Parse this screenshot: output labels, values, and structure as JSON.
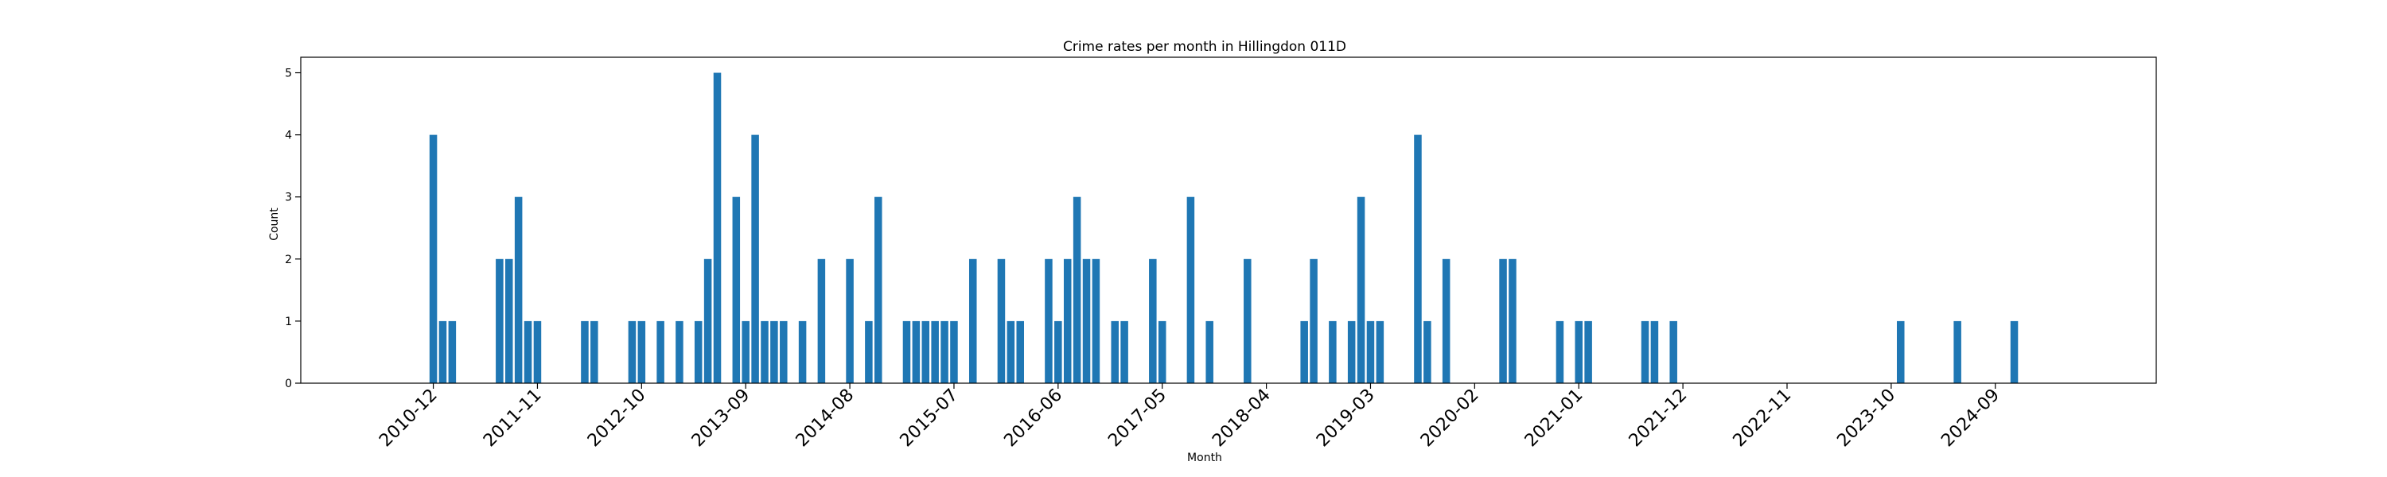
{
  "chart_data": {
    "type": "bar",
    "title": "Crime rates per month in Hillingdon 011D",
    "xlabel": "Month",
    "ylabel": "Count",
    "ylim": [
      0,
      5.25
    ],
    "xlim": [
      "2009-10",
      "2026-02"
    ],
    "yticks": [
      0,
      1,
      2,
      3,
      4,
      5
    ],
    "xticks": [
      "2010-12",
      "2011-11",
      "2012-10",
      "2013-09",
      "2014-08",
      "2015-07",
      "2016-06",
      "2017-05",
      "2018-04",
      "2019-03",
      "2020-02",
      "2021-01",
      "2021-12",
      "2022-11",
      "2023-10",
      "2024-09"
    ],
    "grid": false,
    "legend": "none",
    "bar_color": "#1f77b4",
    "categories": [
      "2010-12",
      "2011-01",
      "2011-02",
      "2011-07",
      "2011-08",
      "2011-09",
      "2011-10",
      "2011-11",
      "2012-04",
      "2012-05",
      "2012-09",
      "2012-10",
      "2012-12",
      "2013-02",
      "2013-04",
      "2013-05",
      "2013-06",
      "2013-08",
      "2013-09",
      "2013-10",
      "2013-11",
      "2013-12",
      "2014-01",
      "2014-03",
      "2014-05",
      "2014-08",
      "2014-10",
      "2014-11",
      "2015-02",
      "2015-03",
      "2015-04",
      "2015-05",
      "2015-06",
      "2015-07",
      "2015-09",
      "2015-12",
      "2016-01",
      "2016-02",
      "2016-05",
      "2016-06",
      "2016-07",
      "2016-08",
      "2016-09",
      "2016-10",
      "2016-12",
      "2017-01",
      "2017-04",
      "2017-05",
      "2017-08",
      "2017-10",
      "2018-02",
      "2018-08",
      "2018-09",
      "2018-11",
      "2019-01",
      "2019-02",
      "2019-03",
      "2019-04",
      "2019-08",
      "2019-09",
      "2019-11",
      "2020-05",
      "2020-06",
      "2020-11",
      "2021-01",
      "2021-02",
      "2021-08",
      "2021-09",
      "2021-11",
      "2023-11",
      "2024-05",
      "2024-11"
    ],
    "values": [
      4,
      1,
      1,
      2,
      2,
      3,
      1,
      1,
      1,
      1,
      1,
      1,
      1,
      1,
      1,
      2,
      5,
      3,
      1,
      4,
      1,
      1,
      1,
      1,
      2,
      2,
      1,
      3,
      1,
      1,
      1,
      1,
      1,
      1,
      2,
      2,
      1,
      1,
      2,
      1,
      2,
      3,
      2,
      2,
      1,
      1,
      2,
      1,
      3,
      1,
      2,
      1,
      2,
      1,
      1,
      3,
      1,
      1,
      4,
      1,
      2,
      2,
      2,
      1,
      1,
      1,
      1,
      1,
      1,
      1,
      1,
      1
    ]
  }
}
